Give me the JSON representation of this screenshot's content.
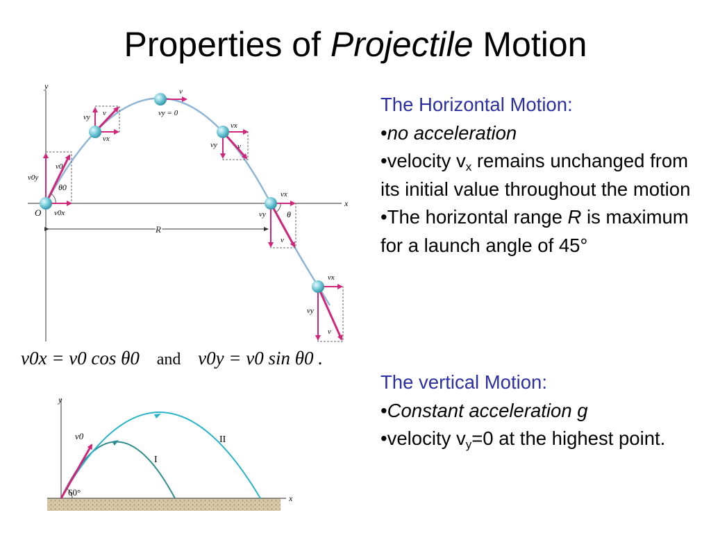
{
  "title": {
    "part1": "Properties of ",
    "part2": "Projectile",
    "part3": " Motion"
  },
  "horizontal": {
    "heading": "The Horizontal Motion:",
    "bullet1": "no acceleration",
    "bullet2_a": "velocity v",
    "bullet2_sub": "x",
    "bullet2_b": " remains unchanged from its initial value  throughout the motion",
    "bullet3_a": "The horizontal range ",
    "bullet3_R": "R",
    "bullet3_b": " is maximum for a launch angle of 45°"
  },
  "vertical": {
    "heading": "The vertical Motion:",
    "bullet1": "Constant acceleration g",
    "bullet2_a": "velocity v",
    "bullet2_sub": "y",
    "bullet2_b": "=0 at the highest point."
  },
  "diagram1": {
    "axis_y": "y",
    "axis_x": "x",
    "origin": "O",
    "v0": "v0",
    "v0y": "v0y",
    "v0x": "v0x",
    "theta0": "θ0",
    "vy": "vy",
    "vx": "vx",
    "v": "v",
    "vy_zero": "vy = 0",
    "theta": "θ",
    "range": "R"
  },
  "equation": {
    "lhs1": "v0x = v0 cos θ0",
    "and": "and",
    "lhs2": "v0y = v0 sin θ0 ."
  },
  "diagram2": {
    "axis_y": "y",
    "axis_x": "x",
    "v0": "v0",
    "angle": "60°",
    "curve1": "I",
    "curve2": "II"
  },
  "colors": {
    "heading": "#2b2fa0",
    "vector": "#d0257a",
    "trajectory": "#8fb5d6",
    "ball": "#6fc7d6",
    "curve1": "#2f8c8f",
    "curve2": "#28b3c9"
  }
}
